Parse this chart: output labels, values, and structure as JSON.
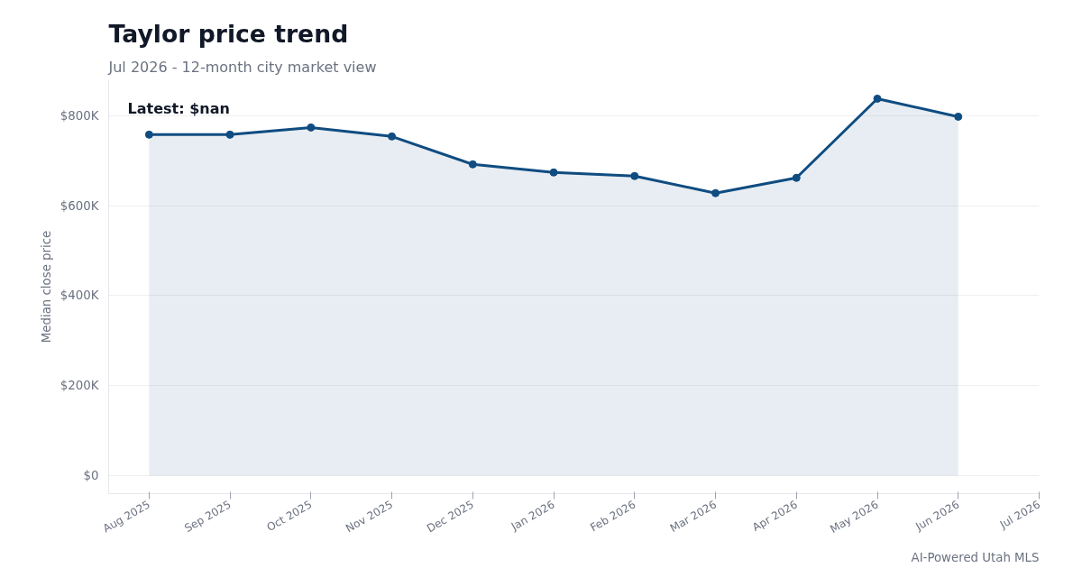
{
  "chart_data": {
    "type": "area",
    "title": "Taylor price trend",
    "subtitle": "Jul 2026 - 12-month city market view",
    "ylabel": "Median close price",
    "categories": [
      "Aug 2025",
      "Sep 2025",
      "Oct 2025",
      "Nov 2025",
      "Dec 2025",
      "Jan 2026",
      "Feb 2026",
      "Mar 2026",
      "Apr 2026",
      "May 2026",
      "Jun 2026",
      "Jul 2026"
    ],
    "series": [
      {
        "color": "#0f4c81",
        "values": [
          758000,
          758000,
          774000,
          754000,
          692000,
          674000,
          666000,
          628000,
          662000,
          838000,
          798000,
          null
        ]
      }
    ],
    "ylim": [
      -40000,
      880000
    ],
    "yticks": [
      {
        "value": 0,
        "label": "$0"
      },
      {
        "value": 200000,
        "label": "$200K"
      },
      {
        "value": 400000,
        "label": "$400K"
      },
      {
        "value": 600000,
        "label": "$600K"
      },
      {
        "value": 800000,
        "label": "$800K"
      }
    ],
    "grid": "y",
    "marker": "circle",
    "line_style": "solid",
    "annotations": [
      "Latest: $nan",
      "AI-Powered Utah MLS"
    ]
  }
}
